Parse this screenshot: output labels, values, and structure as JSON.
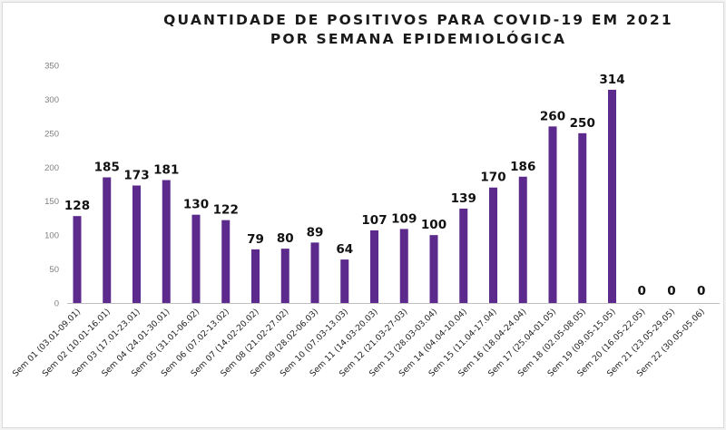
{
  "chart_data": {
    "type": "bar",
    "title_lines": [
      "QUANTIDADE DE POSITIVOS PARA COVID-19  EM 2021",
      "POR SEMANA EPIDEMIOLÓGICA"
    ],
    "xlabel": "",
    "ylabel": "",
    "ylim": [
      0,
      350
    ],
    "yticks": [
      0,
      50,
      100,
      150,
      200,
      250,
      300,
      350
    ],
    "grid": false,
    "legend": "none",
    "bar_color": "#5b2a8c",
    "categories": [
      "Sem 01 (03.01-09.01)",
      "Sem 02 (10.01-16.01)",
      "Sem 03 (17.01-23.01)",
      "Sem 04 (24.01-30.01)",
      "Sem 05 (31.01-06.02)",
      "Sem 06 (07.02-13.02)",
      "Sem 07 (14.02-20.02)",
      "Sem 08 (21.02-27.02)",
      "Sem 09 (28.02-06.03)",
      "Sem 10 (07.03-13.03)",
      "Sem 11 (14.03-20.03)",
      "Sem 12 (21.03-27-03)",
      "Sem 13 (28.03-03.04)",
      "Sem 14 (04.04-10.04)",
      "Sem 15 (11.04-17.04)",
      "Sem 16 (18.04-24.04)",
      "Sem 17 (25.04-01.05)",
      "Sem 18 (02.05-08.05)",
      "Sem 19 (09.05-15.05)",
      "Sem 20 (16.05-22.05)",
      "Sem 21 (23.05-29.05)",
      "Sem 22 (30.05-05.06)"
    ],
    "values": [
      128,
      185,
      173,
      181,
      130,
      122,
      79,
      80,
      89,
      64,
      107,
      109,
      100,
      139,
      170,
      186,
      260,
      250,
      314,
      0,
      0,
      0
    ]
  }
}
